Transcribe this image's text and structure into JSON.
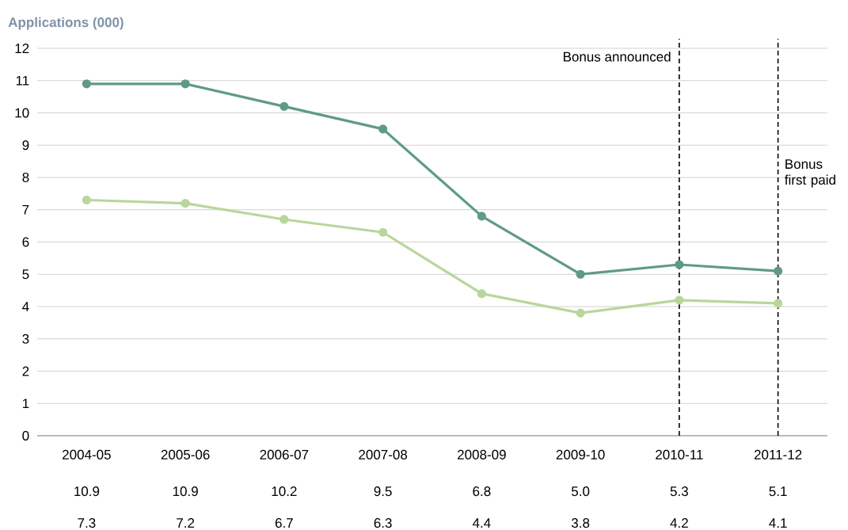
{
  "chart_data": {
    "type": "line",
    "ylabel": "Applications (000)",
    "categories": [
      "2004-05",
      "2005-06",
      "2006-07",
      "2007-08",
      "2008-09",
      "2009-10",
      "2010-11",
      "2011-12"
    ],
    "series": [
      {
        "color": "#5f9a88",
        "values": [
          10.9,
          10.9,
          10.2,
          9.5,
          6.8,
          5.0,
          5.3,
          5.1
        ],
        "value_labels": [
          "10.9",
          "10.9",
          "10.2",
          "9.5",
          "6.8",
          "5.0",
          "5.3",
          "5.1"
        ]
      },
      {
        "color": "#b9d69c",
        "values": [
          7.3,
          7.2,
          6.7,
          6.3,
          4.4,
          3.8,
          4.2,
          4.1
        ],
        "value_labels": [
          "7.3",
          "7.2",
          "6.7",
          "6.3",
          "4.4",
          "3.8",
          "4.2",
          "4.1"
        ]
      }
    ],
    "ylim": [
      0,
      12
    ],
    "yticks": [
      0,
      1,
      2,
      3,
      4,
      5,
      6,
      7,
      8,
      9,
      10,
      11,
      12
    ],
    "grid": "y",
    "marker": "circle",
    "line_style": "solid",
    "ref_lines": [
      {
        "axis": "x",
        "value": "2010-11",
        "label": "Bonus announced",
        "color": "#000000",
        "line_style": "dashed"
      },
      {
        "axis": "x",
        "value": "2011-12",
        "label": "Bonus first paid",
        "color": "#000000",
        "line_style": "dashed"
      }
    ]
  }
}
